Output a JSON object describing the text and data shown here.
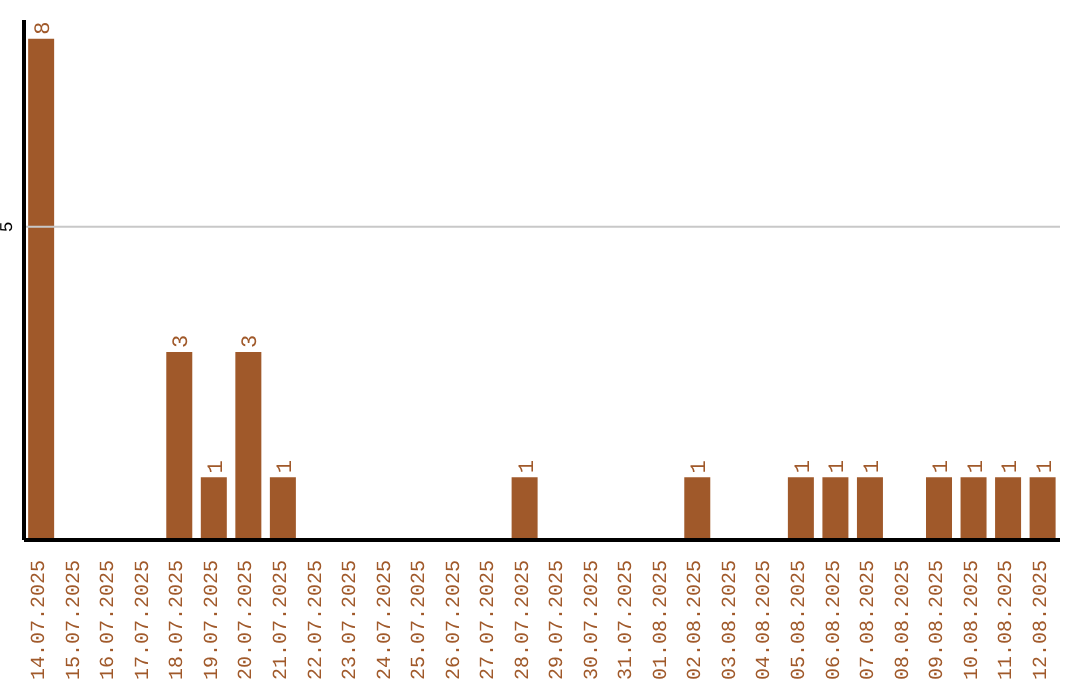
{
  "chart_data": {
    "type": "bar",
    "categories": [
      "14.07.2025",
      "15.07.2025",
      "16.07.2025",
      "17.07.2025",
      "18.07.2025",
      "19.07.2025",
      "20.07.2025",
      "21.07.2025",
      "22.07.2025",
      "23.07.2025",
      "24.07.2025",
      "25.07.2025",
      "26.07.2025",
      "27.07.2025",
      "28.07.2025",
      "29.07.2025",
      "30.07.2025",
      "31.07.2025",
      "01.08.2025",
      "02.08.2025",
      "03.08.2025",
      "04.08.2025",
      "05.08.2025",
      "06.08.2025",
      "07.08.2025",
      "08.08.2025",
      "09.08.2025",
      "10.08.2025",
      "11.08.2025",
      "12.08.2025"
    ],
    "values": [
      8,
      0,
      0,
      0,
      3,
      1,
      3,
      1,
      0,
      0,
      0,
      0,
      0,
      0,
      1,
      0,
      0,
      0,
      0,
      1,
      0,
      0,
      1,
      1,
      1,
      0,
      1,
      1,
      1,
      1
    ],
    "value_labels": [
      "8",
      null,
      null,
      null,
      "3",
      "1",
      "3",
      "1",
      null,
      null,
      null,
      null,
      null,
      null,
      "1",
      null,
      null,
      null,
      null,
      "1",
      null,
      null,
      "1",
      "1",
      "1",
      null,
      "1",
      "1",
      "1",
      "1"
    ],
    "color": "#a0592a",
    "ylim": [
      0,
      8.3
    ],
    "yticks": [
      5
    ],
    "grid": "y"
  }
}
